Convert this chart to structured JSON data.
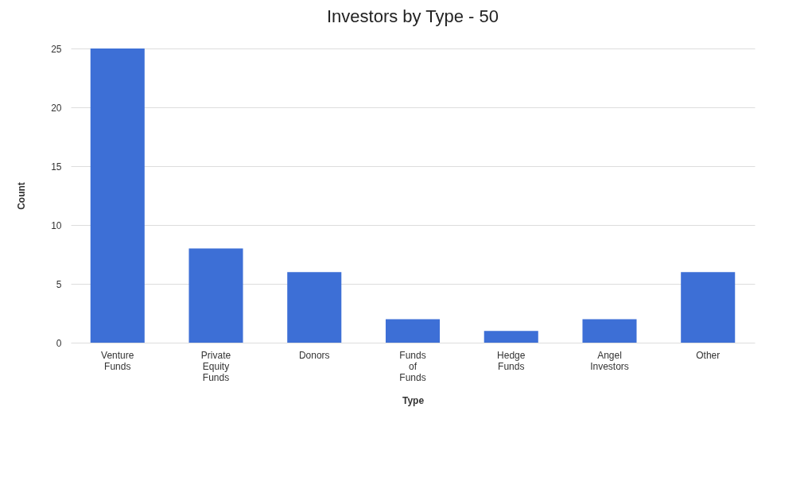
{
  "chart_data": {
    "type": "bar",
    "title": "Investors by Type - 50",
    "xlabel": "Type",
    "ylabel": "Count",
    "categories": [
      "Venture Funds",
      "Private Equity Funds",
      "Donors",
      "Funds of Funds",
      "Hedge Funds",
      "Angel Investors",
      "Other"
    ],
    "values": [
      25,
      8,
      6,
      2,
      1,
      2,
      6
    ],
    "color": "#3d6fd6",
    "ylim": [
      0,
      25
    ],
    "yticks": [
      0,
      5,
      10,
      15,
      20,
      25
    ],
    "grid": "y"
  }
}
